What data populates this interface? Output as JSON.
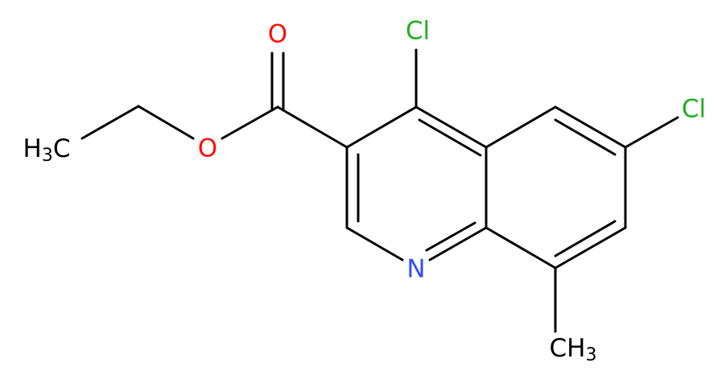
{
  "atoms": [
    {
      "label": "O"
    },
    {
      "label": "Cl"
    },
    {
      "label": "Cl"
    },
    {
      "label": "H3C"
    },
    {
      "label": "O"
    },
    {
      "label": "N"
    },
    {
      "label": "CH3"
    }
  ]
}
